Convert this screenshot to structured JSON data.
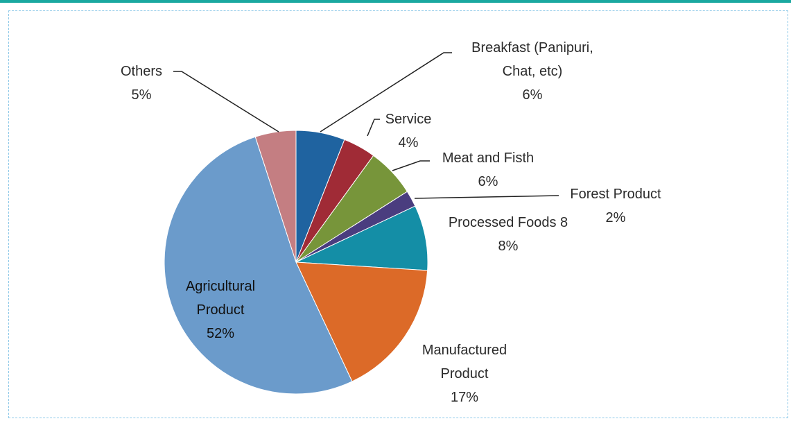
{
  "chart_data": {
    "type": "pie",
    "categories": [
      "Breakfast (Panipuri, Chat, etc)",
      "Service",
      "Meat and Fisth",
      "Forest Product",
      "Processed Foods 8",
      "Manufactured Product",
      "Agricultural Product",
      "Others"
    ],
    "values": [
      6,
      4,
      6,
      2,
      8,
      17,
      52,
      5
    ],
    "value_labels": [
      "6%",
      "4%",
      "6%",
      "2%",
      "8%",
      "17%",
      "52%",
      "5%"
    ],
    "colors": [
      "#1f63a0",
      "#a02b36",
      "#77953a",
      "#4a3d7f",
      "#148ea6",
      "#dc6a28",
      "#6b9bcb",
      "#c47e82"
    ]
  }
}
